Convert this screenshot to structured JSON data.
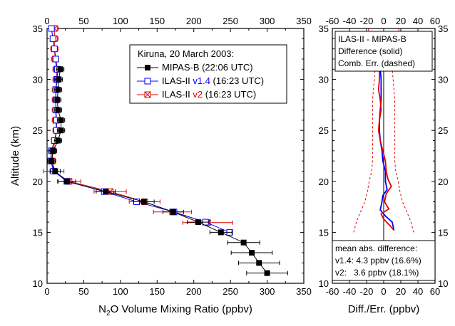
{
  "chart_data": [
    {
      "type": "line",
      "xlabel_pre": "N",
      "xlabel_sub": "2",
      "xlabel_post": "O Volume Mixing Ratio (ppbv)",
      "ylabel": "Altitude (km)",
      "xlim": [
        0,
        350
      ],
      "ylim": [
        10,
        35
      ],
      "xticks": [
        "0",
        "50",
        "100",
        "150",
        "200",
        "250",
        "300",
        "350"
      ],
      "yticks": [
        "10",
        "15",
        "20",
        "25",
        "30",
        "35"
      ],
      "legend": {
        "title": "Kiruna, 20 March 2003:",
        "entries": [
          {
            "pre": "MIPAS-B (22:06 UTC)",
            "ver": "",
            "post": ""
          },
          {
            "pre": "ILAS-II ",
            "ver": "v1.4",
            "post": " (16:23 UTC)"
          },
          {
            "pre": "ILAS-II ",
            "ver": "v2",
            "post": " (16:23 UTC)"
          }
        ]
      },
      "series": [
        {
          "name": "MIPAS-B",
          "color": "#000000",
          "marker": "filled-square",
          "points": [
            [
              300,
              11
            ],
            [
              289,
              12
            ],
            [
              279,
              13
            ],
            [
              268,
              14
            ],
            [
              237,
              15
            ],
            [
              206,
              16
            ],
            [
              172,
              17
            ],
            [
              132,
              18
            ],
            [
              80,
              19
            ],
            [
              27,
              20
            ],
            [
              11,
              21
            ],
            [
              6,
              22
            ],
            [
              8,
              23
            ],
            [
              15,
              24
            ],
            [
              19,
              25
            ],
            [
              19,
              26
            ],
            [
              15,
              27
            ],
            [
              14,
              28
            ],
            [
              15,
              29
            ],
            [
              16,
              30
            ],
            [
              18,
              31
            ]
          ],
          "err": [
            28,
            28,
            28,
            22,
            15,
            15,
            14,
            14,
            13,
            12,
            7,
            5,
            5,
            5,
            5,
            5,
            5,
            5,
            5,
            5,
            5
          ]
        },
        {
          "name": "ILAS-II v1.4",
          "color": "#0000ff",
          "marker": "open-square",
          "points": [
            [
              249,
              15
            ],
            [
              216,
              16
            ],
            [
              173,
              17
            ],
            [
              122,
              18
            ],
            [
              78,
              19
            ],
            [
              27,
              20
            ],
            [
              9,
              21
            ],
            [
              5,
              22
            ],
            [
              6,
              23
            ],
            [
              10,
              24
            ],
            [
              13,
              25
            ],
            [
              13,
              26
            ],
            [
              12,
              27
            ],
            [
              12,
              28
            ],
            [
              12,
              29
            ],
            [
              14,
              30
            ],
            [
              14,
              31
            ],
            [
              12,
              32
            ],
            [
              10,
              33
            ],
            [
              8,
              34
            ],
            [
              6,
              35
            ]
          ],
          "err": []
        },
        {
          "name": "ILAS-II v2",
          "color": "#e00000",
          "marker": "crossed-square",
          "points": [
            [
              219,
              15.95
            ],
            [
              171,
              17
            ],
            [
              133,
              18
            ],
            [
              86,
              19
            ],
            [
              30,
              20
            ],
            [
              9,
              21
            ],
            [
              7,
              22
            ],
            [
              8,
              23
            ],
            [
              11,
              24
            ],
            [
              13,
              25
            ],
            [
              12,
              26
            ],
            [
              12,
              27
            ],
            [
              12,
              28
            ],
            [
              12,
              29
            ],
            [
              13,
              30
            ],
            [
              13,
              31
            ],
            [
              11,
              32
            ],
            [
              10,
              33
            ],
            [
              10,
              34
            ],
            [
              10,
              35
            ]
          ],
          "err": [
            34,
            26,
            21,
            22,
            16,
            14,
            5,
            5,
            5,
            5,
            5,
            5,
            5,
            5,
            5,
            5,
            5,
            5,
            5,
            5
          ]
        }
      ]
    },
    {
      "type": "line",
      "xlabel": "Diff./Err. (ppbv)",
      "xlim": [
        -60,
        60
      ],
      "ylim": [
        10,
        35
      ],
      "xticks": [
        "-60",
        "-40",
        "-20",
        "0",
        "20",
        "40",
        "60"
      ],
      "yticks": [
        "10",
        "15",
        "20",
        "25",
        "30",
        "35"
      ],
      "info_lines": [
        "ILAS-II - MIPAS-B",
        "Difference (solid)",
        "Comb. Err. (dashed)"
      ],
      "summary": {
        "title": "mean abs. difference:",
        "rows": [
          {
            "label": "v1.4: 4.3 ppbv (16.6%)",
            "color": "#0000ff"
          },
          {
            "label": "v2:   3.6 ppbv (18.1%)",
            "color": "#e00000"
          }
        ]
      },
      "series": [
        {
          "name": "v1.4",
          "color": "#0000ff",
          "style": "solid",
          "points": [
            [
              12,
              15.2
            ],
            [
              10,
              16
            ],
            [
              2,
              16.6
            ],
            [
              -4,
              17.2
            ],
            [
              -2,
              18
            ],
            [
              -1,
              18.6
            ],
            [
              4,
              19.2
            ],
            [
              2,
              20
            ],
            [
              2,
              21
            ],
            [
              -1,
              22
            ],
            [
              -2,
              23
            ],
            [
              -4,
              24
            ],
            [
              -5,
              25
            ],
            [
              -5,
              26
            ],
            [
              -4,
              27
            ],
            [
              -3,
              28
            ],
            [
              -3,
              29
            ],
            [
              -3,
              30
            ],
            [
              -4,
              31
            ],
            [
              -4,
              32
            ]
          ]
        },
        {
          "name": "v2",
          "color": "#e00000",
          "style": "solid",
          "points": [
            [
              12,
              15.2
            ],
            [
              8,
              15.6
            ],
            [
              0,
              16.3
            ],
            [
              -3,
              16.8
            ],
            [
              6,
              17.3
            ],
            [
              1,
              18
            ],
            [
              3,
              18.8
            ],
            [
              9,
              19.5
            ],
            [
              5,
              20.2
            ],
            [
              3,
              21
            ],
            [
              2,
              22
            ],
            [
              -1,
              23
            ],
            [
              -4,
              24
            ],
            [
              -6,
              25
            ],
            [
              -5,
              26
            ],
            [
              -3,
              27
            ],
            [
              -4,
              28
            ],
            [
              -6,
              29
            ],
            [
              -5,
              30
            ],
            [
              -5,
              31
            ],
            [
              -6,
              32
            ]
          ]
        },
        {
          "name": "err+",
          "color": "#e00000",
          "style": "dashed",
          "points": [
            [
              35,
              15
            ],
            [
              32,
              16
            ],
            [
              27,
              17
            ],
            [
              22,
              18
            ],
            [
              19,
              19
            ],
            [
              17,
              20
            ],
            [
              14,
              21
            ],
            [
              13,
              22
            ],
            [
              13,
              23
            ],
            [
              13,
              24
            ],
            [
              13,
              25
            ],
            [
              13,
              26
            ],
            [
              13,
              27
            ],
            [
              13,
              28
            ],
            [
              12,
              29
            ],
            [
              11,
              30
            ],
            [
              10,
              31
            ],
            [
              12,
              32
            ],
            [
              14,
              33
            ],
            [
              16,
              34
            ],
            [
              18,
              35
            ]
          ]
        },
        {
          "name": "err-",
          "color": "#e00000",
          "style": "dashed",
          "points": [
            [
              -35,
              15
            ],
            [
              -32,
              16
            ],
            [
              -27,
              17
            ],
            [
              -22,
              18
            ],
            [
              -19,
              19
            ],
            [
              -17,
              20
            ],
            [
              -14,
              21
            ],
            [
              -13,
              22
            ],
            [
              -13,
              23
            ],
            [
              -13,
              24
            ],
            [
              -13,
              25
            ],
            [
              -13,
              26
            ],
            [
              -13,
              27
            ],
            [
              -13,
              28
            ],
            [
              -12,
              29
            ],
            [
              -11,
              30
            ],
            [
              -10,
              31
            ],
            [
              -12,
              32
            ],
            [
              -14,
              33
            ],
            [
              -16,
              34
            ],
            [
              -18,
              35
            ]
          ]
        }
      ]
    }
  ]
}
